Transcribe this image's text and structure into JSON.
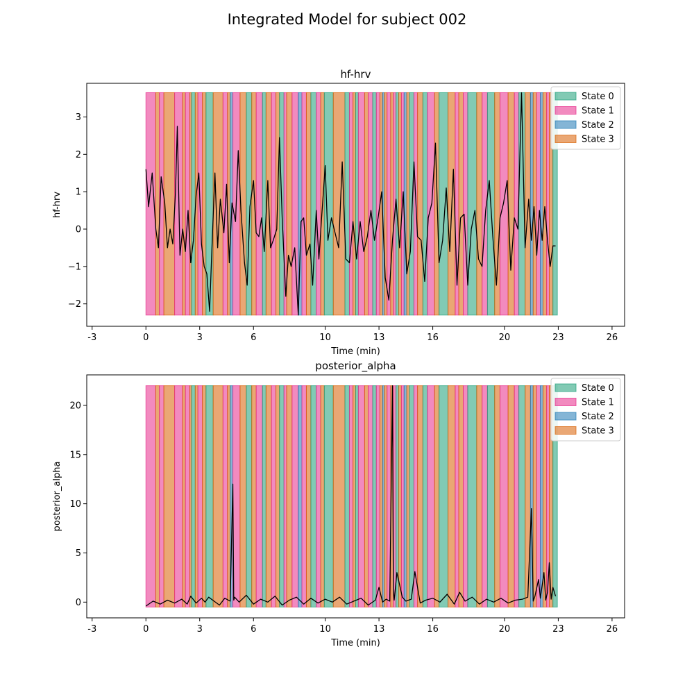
{
  "figure": {
    "suptitle": "Integrated Model for subject 002"
  },
  "colors": {
    "state_0": "#1b9e77",
    "state_1": "#e7298a",
    "state_2": "#1f78b4",
    "state_3": "#d95f02",
    "signal": "#000000"
  },
  "state_segments": [
    [
      0.0,
      0.55,
      1
    ],
    [
      0.55,
      0.75,
      3
    ],
    [
      0.75,
      1.0,
      1
    ],
    [
      1.0,
      1.6,
      3
    ],
    [
      1.6,
      2.05,
      1
    ],
    [
      2.05,
      2.2,
      3
    ],
    [
      2.2,
      2.45,
      1
    ],
    [
      2.45,
      2.55,
      3
    ],
    [
      2.55,
      2.75,
      0
    ],
    [
      2.75,
      2.9,
      3
    ],
    [
      2.9,
      3.15,
      1
    ],
    [
      3.15,
      3.35,
      3
    ],
    [
      3.35,
      3.75,
      0
    ],
    [
      3.75,
      4.3,
      3
    ],
    [
      4.3,
      4.55,
      1
    ],
    [
      4.55,
      4.7,
      3
    ],
    [
      4.7,
      4.85,
      2
    ],
    [
      4.85,
      5.25,
      1
    ],
    [
      5.25,
      5.6,
      3
    ],
    [
      5.6,
      5.9,
      0
    ],
    [
      5.9,
      6.15,
      3
    ],
    [
      6.15,
      6.5,
      1
    ],
    [
      6.5,
      6.7,
      0
    ],
    [
      6.7,
      7.0,
      3
    ],
    [
      7.0,
      7.25,
      1
    ],
    [
      7.25,
      7.45,
      3
    ],
    [
      7.45,
      7.7,
      0
    ],
    [
      7.7,
      7.85,
      1
    ],
    [
      7.85,
      8.15,
      3
    ],
    [
      8.15,
      8.5,
      1
    ],
    [
      8.5,
      8.7,
      2
    ],
    [
      8.7,
      8.95,
      1
    ],
    [
      8.95,
      9.2,
      3
    ],
    [
      9.2,
      9.5,
      0
    ],
    [
      9.5,
      9.75,
      1
    ],
    [
      9.75,
      9.95,
      3
    ],
    [
      9.95,
      10.45,
      0
    ],
    [
      10.45,
      11.1,
      3
    ],
    [
      11.1,
      11.35,
      0
    ],
    [
      11.35,
      11.55,
      1
    ],
    [
      11.55,
      11.7,
      3
    ],
    [
      11.7,
      11.85,
      0
    ],
    [
      11.85,
      12.2,
      1
    ],
    [
      12.2,
      12.4,
      3
    ],
    [
      12.4,
      12.65,
      1
    ],
    [
      12.65,
      12.85,
      0
    ],
    [
      12.85,
      13.05,
      1
    ],
    [
      13.05,
      13.2,
      3
    ],
    [
      13.2,
      13.3,
      2
    ],
    [
      13.3,
      13.45,
      3
    ],
    [
      13.45,
      13.65,
      1
    ],
    [
      13.65,
      13.8,
      3
    ],
    [
      13.8,
      13.95,
      1
    ],
    [
      13.95,
      14.1,
      0
    ],
    [
      14.1,
      14.25,
      3
    ],
    [
      14.25,
      14.4,
      1
    ],
    [
      14.4,
      14.55,
      2
    ],
    [
      14.55,
      14.7,
      3
    ],
    [
      14.7,
      14.95,
      0
    ],
    [
      14.95,
      15.15,
      1
    ],
    [
      15.15,
      15.45,
      3
    ],
    [
      15.45,
      15.7,
      0
    ],
    [
      15.7,
      16.1,
      1
    ],
    [
      16.1,
      16.35,
      3
    ],
    [
      16.35,
      16.85,
      0
    ],
    [
      16.85,
      17.25,
      3
    ],
    [
      17.25,
      17.45,
      1
    ],
    [
      17.45,
      17.7,
      3
    ],
    [
      17.7,
      17.95,
      1
    ],
    [
      17.95,
      18.45,
      0
    ],
    [
      18.45,
      18.75,
      3
    ],
    [
      18.75,
      19.05,
      1
    ],
    [
      19.05,
      19.45,
      0
    ],
    [
      19.45,
      19.75,
      3
    ],
    [
      19.75,
      20.2,
      1
    ],
    [
      20.2,
      20.55,
      3
    ],
    [
      20.55,
      20.8,
      1
    ],
    [
      20.8,
      21.15,
      0
    ],
    [
      21.15,
      21.45,
      3
    ],
    [
      21.45,
      21.6,
      2
    ],
    [
      21.6,
      21.8,
      3
    ],
    [
      21.8,
      22.0,
      1
    ],
    [
      22.0,
      22.15,
      2
    ],
    [
      22.15,
      22.35,
      3
    ],
    [
      22.35,
      22.5,
      1
    ],
    [
      22.5,
      22.7,
      3
    ],
    [
      22.7,
      22.95,
      0
    ]
  ],
  "chart_data": [
    {
      "type": "line",
      "title": "hf-hrv",
      "xlabel": "Time (min)",
      "ylabel": "hf-hrv",
      "x_ticks": [
        -3,
        0,
        3,
        6,
        10,
        13,
        16,
        20,
        23,
        26
      ],
      "x_tick_labels": [
        "-3",
        "0",
        "3",
        "6",
        "10",
        "13",
        "16",
        "20",
        "23",
        "26"
      ],
      "y_ticks": [
        -2,
        -1,
        0,
        1,
        2,
        3
      ],
      "y_tick_labels": [
        "−2",
        "−1",
        "0",
        "1",
        "2",
        "3"
      ],
      "xlim": [
        -3.3,
        26.7
      ],
      "ylim": [
        -2.6,
        3.9
      ],
      "state_band": [
        -2.3,
        3.65
      ],
      "legend_position": "upper right",
      "legend": [
        "State 0",
        "State 1",
        "State 2",
        "State 3"
      ],
      "series": [
        {
          "x": [
            0.0,
            0.15,
            0.35,
            0.55,
            0.7,
            0.85,
            1.05,
            1.2,
            1.35,
            1.5,
            1.65,
            1.75,
            1.9,
            2.05,
            2.2,
            2.35,
            2.5,
            2.65,
            2.8,
            2.95,
            3.1,
            3.25,
            3.4,
            3.55,
            3.7,
            3.85,
            4.0,
            4.15,
            4.35,
            4.5,
            4.65,
            4.8,
            5.0,
            5.15,
            5.3,
            5.5,
            5.65,
            5.8,
            6.0,
            6.15,
            6.3,
            6.45,
            6.6,
            6.8,
            6.95,
            7.1,
            7.3,
            7.45,
            7.6,
            7.8,
            7.95,
            8.1,
            8.3,
            8.5,
            8.65,
            8.8,
            8.95,
            9.15,
            9.3,
            9.5,
            9.65,
            9.8,
            10.0,
            10.15,
            10.35,
            10.55,
            10.75,
            10.95,
            11.15,
            11.35,
            11.55,
            11.75,
            11.95,
            12.15,
            12.35,
            12.55,
            12.75,
            12.95,
            13.15,
            13.35,
            13.55,
            13.75,
            13.95,
            14.15,
            14.35,
            14.55,
            14.75,
            14.95,
            15.15,
            15.35,
            15.55,
            15.75,
            15.95,
            16.15,
            16.35,
            16.55,
            16.75,
            16.95,
            17.15,
            17.35,
            17.55,
            17.75,
            17.95,
            18.15,
            18.35,
            18.55,
            18.75,
            18.95,
            19.15,
            19.35,
            19.55,
            19.75,
            19.95,
            20.15,
            20.35,
            20.55,
            20.75,
            20.95,
            21.15,
            21.35,
            21.5,
            21.65,
            21.8,
            21.95,
            22.1,
            22.25,
            22.4,
            22.55,
            22.7,
            22.85
          ],
          "y": [
            1.6,
            0.6,
            1.5,
            0.0,
            -0.5,
            1.4,
            0.7,
            -0.5,
            0.0,
            -0.4,
            1.0,
            2.75,
            -0.7,
            0.0,
            -0.6,
            0.5,
            -0.9,
            -0.3,
            0.9,
            1.5,
            -0.4,
            -1.0,
            -1.2,
            -2.2,
            -0.3,
            1.5,
            -0.5,
            0.8,
            -0.1,
            1.2,
            -0.9,
            0.7,
            0.2,
            2.1,
            0.5,
            -0.9,
            -1.5,
            0.6,
            1.3,
            -0.1,
            -0.2,
            0.3,
            -0.6,
            1.3,
            -0.5,
            -0.3,
            0.0,
            2.45,
            0.3,
            -1.8,
            -0.7,
            -1.0,
            -0.5,
            -2.3,
            0.2,
            0.3,
            -0.7,
            -0.4,
            -1.5,
            0.5,
            -0.8,
            0.3,
            1.7,
            -0.3,
            0.3,
            -0.1,
            -0.5,
            1.8,
            -0.8,
            -0.9,
            0.2,
            -0.8,
            0.2,
            -0.6,
            -0.2,
            0.5,
            -0.3,
            0.3,
            1.0,
            -1.3,
            -1.9,
            -0.3,
            0.8,
            -0.5,
            1.0,
            -1.2,
            -0.6,
            1.8,
            -0.2,
            -0.3,
            -1.4,
            0.3,
            0.7,
            2.3,
            -0.9,
            -0.3,
            1.1,
            -0.6,
            1.6,
            -1.5,
            0.3,
            0.4,
            -1.5,
            0.0,
            0.5,
            -0.8,
            -1.0,
            0.5,
            1.3,
            -0.2,
            -1.5,
            0.3,
            0.7,
            1.3,
            -1.1,
            0.3,
            0.0,
            3.65,
            -0.5,
            0.8,
            -0.3,
            0.6,
            -0.7,
            0.5,
            -0.3,
            0.6,
            -0.3,
            -1.0,
            -0.45,
            -0.45
          ]
        }
      ]
    },
    {
      "type": "line",
      "title": "posterior_alpha",
      "xlabel": "Time (min)",
      "ylabel": "posterior_alpha",
      "x_ticks": [
        -3,
        0,
        3,
        6,
        10,
        13,
        16,
        20,
        23,
        26
      ],
      "x_tick_labels": [
        "-3",
        "0",
        "3",
        "6",
        "10",
        "13",
        "16",
        "20",
        "23",
        "26"
      ],
      "y_ticks": [
        0,
        5,
        10,
        15,
        20
      ],
      "y_tick_labels": [
        "0",
        "5",
        "10",
        "15",
        "20"
      ],
      "xlim": [
        -3.3,
        26.7
      ],
      "ylim": [
        -1.6,
        23.1
      ],
      "state_band": [
        -0.5,
        22.0
      ],
      "legend_position": "upper right",
      "legend": [
        "State 0",
        "State 1",
        "State 2",
        "State 3"
      ],
      "series": [
        {
          "x": [
            0.0,
            0.4,
            0.8,
            1.2,
            1.6,
            2.0,
            2.3,
            2.5,
            2.8,
            3.1,
            3.3,
            3.5,
            3.8,
            4.1,
            4.4,
            4.7,
            4.85,
            4.9,
            4.95,
            5.2,
            5.6,
            6.0,
            6.4,
            6.8,
            7.2,
            7.6,
            8.0,
            8.4,
            8.8,
            9.2,
            9.6,
            10.0,
            10.4,
            10.8,
            11.2,
            11.6,
            12.0,
            12.4,
            12.8,
            13.0,
            13.2,
            13.4,
            13.6,
            13.75,
            13.8,
            13.85,
            14.0,
            14.3,
            14.5,
            14.8,
            15.0,
            15.3,
            15.6,
            16.0,
            16.4,
            16.8,
            17.2,
            17.5,
            17.8,
            18.2,
            18.6,
            19.0,
            19.4,
            19.8,
            20.2,
            20.6,
            21.0,
            21.3,
            21.5,
            21.6,
            21.7,
            21.9,
            22.0,
            22.2,
            22.3,
            22.4,
            22.5,
            22.6,
            22.7,
            22.85
          ],
          "y": [
            -0.4,
            0.1,
            -0.2,
            0.2,
            -0.1,
            0.3,
            -0.2,
            0.6,
            -0.1,
            0.4,
            0.0,
            0.5,
            0.1,
            -0.3,
            0.4,
            0.1,
            12.0,
            0.2,
            0.5,
            0.0,
            0.7,
            -0.2,
            0.3,
            0.0,
            0.6,
            -0.3,
            0.2,
            0.5,
            -0.2,
            0.4,
            -0.1,
            0.3,
            0.0,
            0.5,
            -0.2,
            0.1,
            0.4,
            -0.3,
            0.2,
            1.5,
            0.0,
            0.3,
            0.1,
            22.0,
            1.2,
            0.2,
            3.0,
            0.5,
            0.1,
            0.3,
            3.1,
            -0.1,
            0.2,
            0.4,
            0.0,
            0.8,
            -0.2,
            1.0,
            0.1,
            0.5,
            -0.2,
            0.3,
            0.0,
            0.4,
            -0.1,
            0.2,
            0.3,
            0.5,
            9.5,
            0.1,
            0.6,
            2.3,
            0.4,
            3.0,
            0.2,
            1.0,
            4.0,
            0.3,
            1.5,
            0.6
          ]
        }
      ]
    }
  ]
}
